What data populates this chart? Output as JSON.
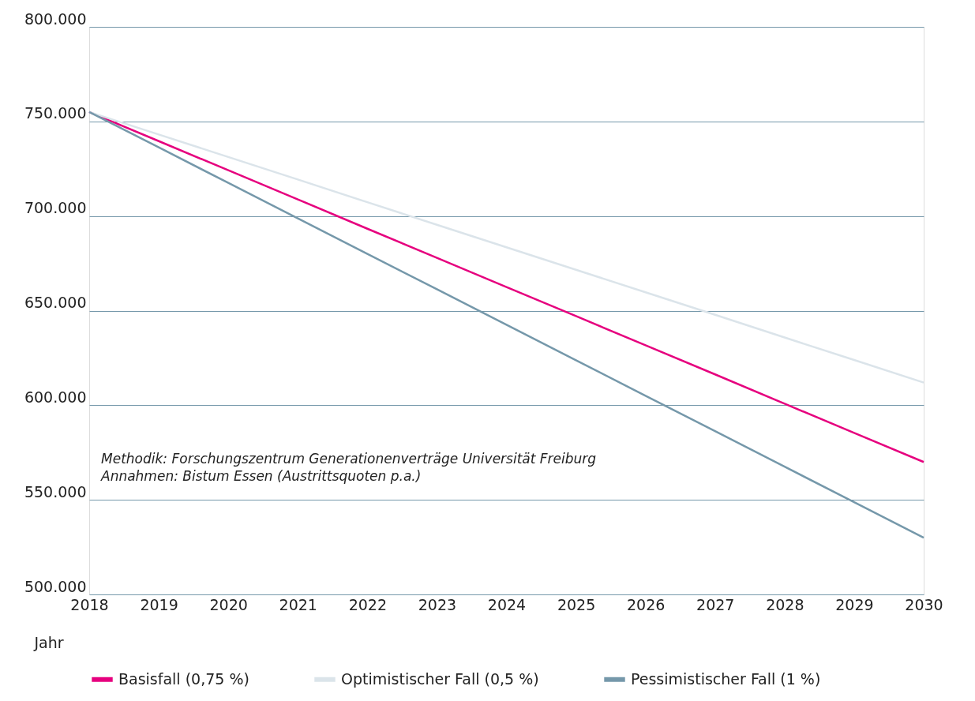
{
  "chart_data": {
    "type": "line",
    "xlabel": "Jahr",
    "x": [
      2018,
      2019,
      2020,
      2021,
      2022,
      2023,
      2024,
      2025,
      2026,
      2027,
      2028,
      2029,
      2030
    ],
    "series": [
      {
        "name": "Basisfall (0,75 %)",
        "color": "#e6007e",
        "values": [
          755000,
          739600,
          724200,
          708800,
          693300,
          677900,
          662500,
          647100,
          631700,
          616300,
          600800,
          585400,
          570000
        ]
      },
      {
        "name": "Optimistischer Fall (0,5 %)",
        "color": "#dbe4ea",
        "values": [
          755000,
          743100,
          731200,
          719300,
          707300,
          695400,
          683500,
          671600,
          659700,
          647800,
          635800,
          623900,
          612000
        ]
      },
      {
        "name": "Pessimistischer Fall (1 %)",
        "color": "#7598aa",
        "values": [
          755000,
          736300,
          717500,
          698800,
          680000,
          661300,
          642500,
          623800,
          605000,
          586300,
          567500,
          548800,
          530000
        ]
      }
    ],
    "xlim": [
      2018,
      2030
    ],
    "xticks": [
      2018,
      2019,
      2020,
      2021,
      2022,
      2023,
      2024,
      2025,
      2026,
      2027,
      2028,
      2029,
      2030
    ],
    "ylim": [
      500000,
      800000
    ],
    "yticks": [
      {
        "value": 500000,
        "label": "500.000"
      },
      {
        "value": 550000,
        "label": "550.000"
      },
      {
        "value": 600000,
        "label": "600.000"
      },
      {
        "value": 650000,
        "label": "650.000"
      },
      {
        "value": 700000,
        "label": "700.000"
      },
      {
        "value": 750000,
        "label": "750.000"
      },
      {
        "value": 800000,
        "label": "800.000"
      }
    ],
    "grid": "y",
    "legend": "bottom",
    "marker": "none",
    "line_style": "solid",
    "annotations": [
      "Methodik: Forschungszentrum Generationenverträge Universität Freiburg",
      "Annahmen: Bistum Essen (Austrittsquoten p.a.)"
    ]
  }
}
